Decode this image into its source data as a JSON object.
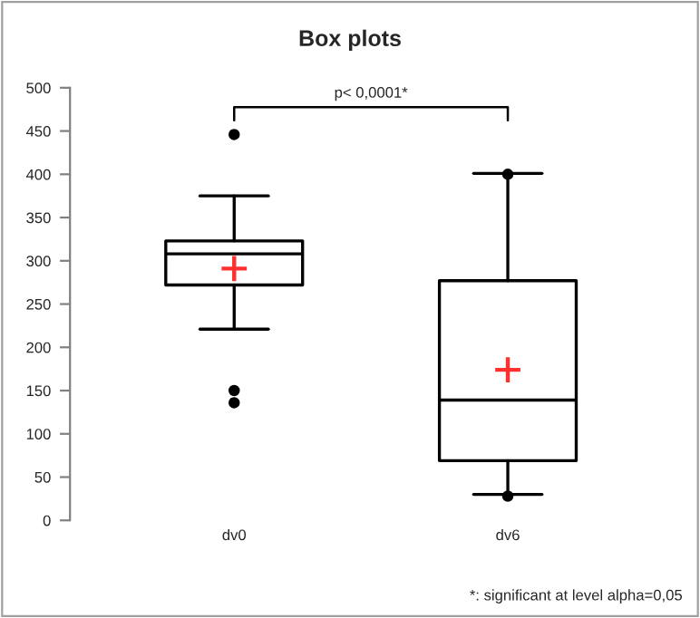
{
  "chart_data": {
    "type": "box",
    "title": "Box plots",
    "categories": [
      "dv0",
      "dv6"
    ],
    "boxes": [
      {
        "low": 221,
        "q1": 272,
        "median": 308,
        "q3": 323,
        "high": 375,
        "mean": 291,
        "outliers": [
          446,
          150,
          136
        ]
      },
      {
        "low": 30,
        "q1": 69,
        "median": 139,
        "q3": 277,
        "high": 401,
        "mean": 174,
        "outliers": [
          400,
          28
        ]
      }
    ],
    "ylim": [
      0,
      500
    ],
    "yticks": [
      0,
      50,
      100,
      150,
      200,
      250,
      300,
      350,
      400,
      450,
      500
    ],
    "grid": false,
    "annotations": [
      "p< 0,0001*",
      "*: significant at level alpha=0,05"
    ]
  }
}
